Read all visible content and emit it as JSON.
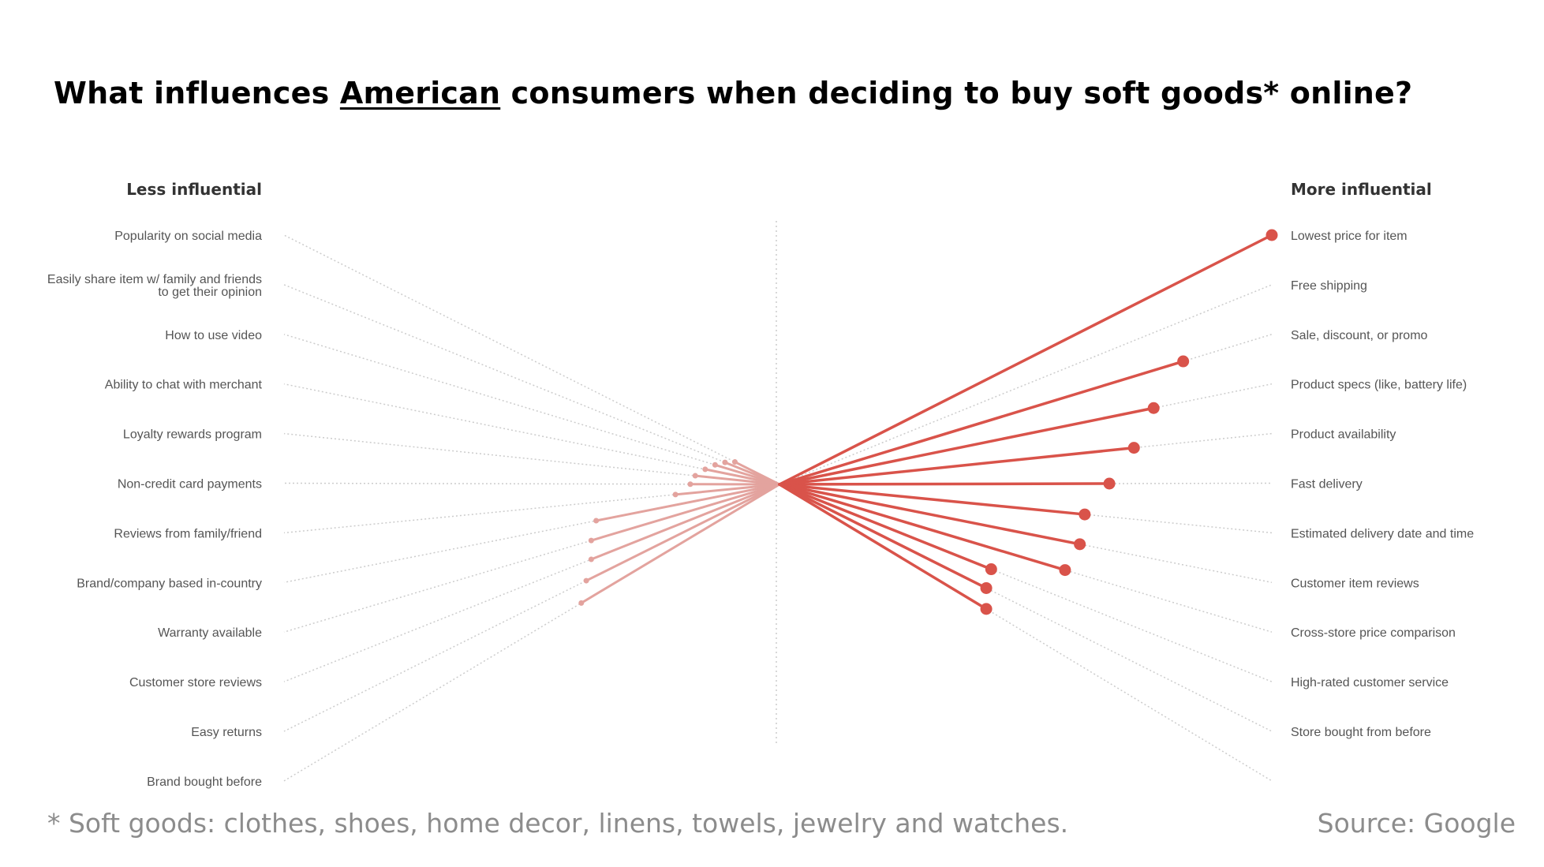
{
  "title": {
    "prefix": "What influences ",
    "emphasis": "American",
    "suffix": " consumers when deciding to buy soft goods* online?"
  },
  "footnote": "* Soft goods: clothes, shoes, home decor, linens, towels, jewelry and watches.",
  "source": "Source: Google",
  "colors": {
    "more": "#d9534a",
    "less": "#e3a39e",
    "dotted": "#cccccc",
    "label": "#555555"
  },
  "chart_data": {
    "type": "radial-lollipop",
    "scale_max": 100,
    "left_header": "Less influential",
    "right_header": "More influential",
    "less_influential": [
      {
        "label": [
          "Popularity on social media"
        ],
        "value": 9
      },
      {
        "label": [
          "Easily share item w/ family and friends",
          "to get their opinion"
        ],
        "value": 11
      },
      {
        "label": [
          "How to use video"
        ],
        "value": 13
      },
      {
        "label": [
          "Ability to chat with merchant"
        ],
        "value": 15
      },
      {
        "label": [
          "Loyalty rewards program"
        ],
        "value": 17
      },
      {
        "label": [
          "Non-credit card payments"
        ],
        "value": 18
      },
      {
        "label": [
          "Reviews from family/friend"
        ],
        "value": 21
      },
      {
        "label": [
          "Brand/company based in-country"
        ],
        "value": 37
      },
      {
        "label": [
          "Warranty available"
        ],
        "value": 38
      },
      {
        "label": [
          "Customer store reviews"
        ],
        "value": 38
      },
      {
        "label": [
          "Easy returns"
        ],
        "value": 39
      },
      {
        "label": [
          "Brand bought before"
        ],
        "value": 40
      }
    ],
    "more_influential": [
      {
        "label": [
          "Lowest price for item"
        ],
        "value": 100
      },
      {
        "label": [
          "Free shipping"
        ],
        "value": null
      },
      {
        "label": [
          "Sale, discount, or promo"
        ],
        "value": 82
      },
      {
        "label": [
          "Product specs (like, battery life)"
        ],
        "value": 76
      },
      {
        "label": [
          "Product availability"
        ],
        "value": 72
      },
      {
        "label": [
          "Fast delivery"
        ],
        "value": 67
      },
      {
        "label": [
          "Estimated delivery date and time"
        ],
        "value": 62
      },
      {
        "label": [
          "Customer item reviews"
        ],
        "value": 61
      },
      {
        "label": [
          "Cross-store price comparison"
        ],
        "value": 58
      },
      {
        "label": [
          "High-rated customer service"
        ],
        "value": 43
      },
      {
        "label": [
          "Store bought from before"
        ],
        "value": 42
      },
      {
        "label": [
          ""
        ],
        "value": 42
      }
    ]
  }
}
